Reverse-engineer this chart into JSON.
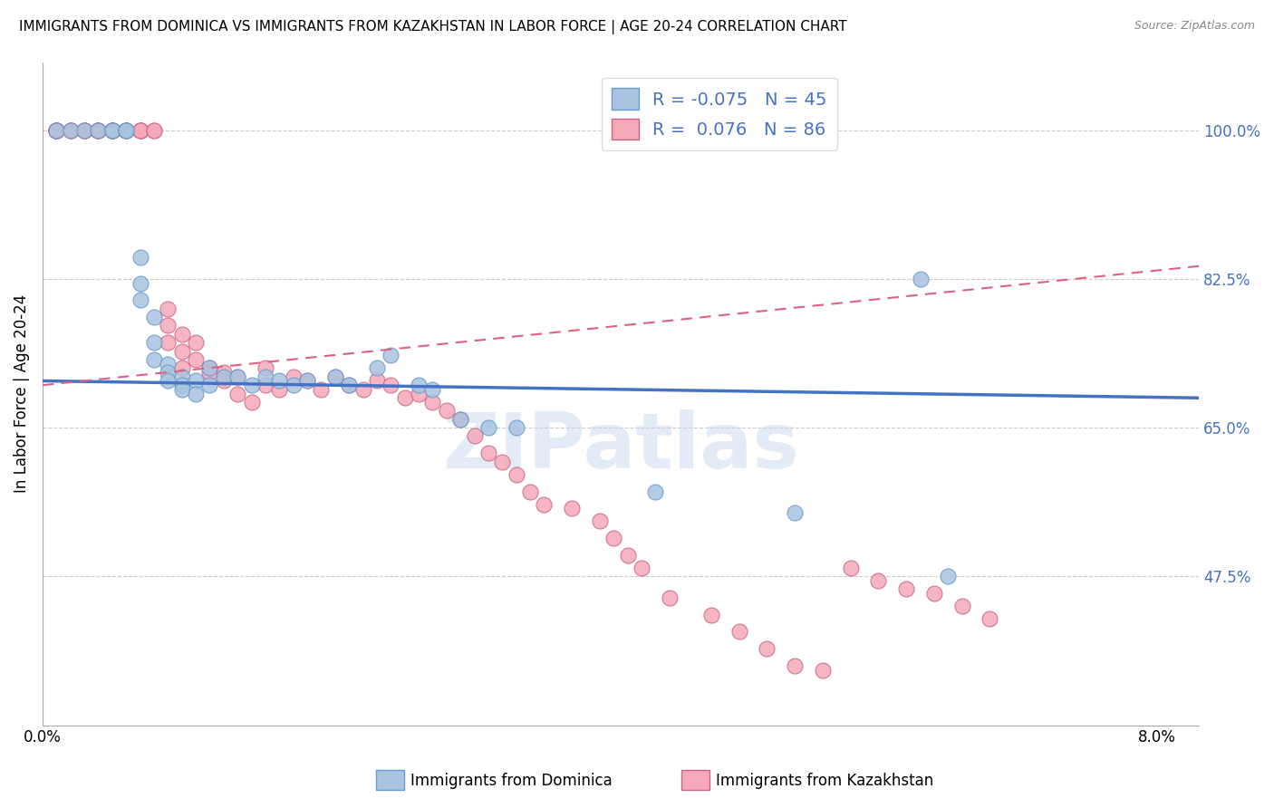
{
  "title": "IMMIGRANTS FROM DOMINICA VS IMMIGRANTS FROM KAZAKHSTAN IN LABOR FORCE | AGE 20-24 CORRELATION CHART",
  "source": "Source: ZipAtlas.com",
  "ylabel": "In Labor Force | Age 20-24",
  "y_ticks": [
    47.5,
    65.0,
    82.5,
    100.0
  ],
  "y_tick_labels": [
    "47.5%",
    "65.0%",
    "82.5%",
    "100.0%"
  ],
  "xlim": [
    0.0,
    0.083
  ],
  "ylim": [
    30.0,
    108.0
  ],
  "dominica_R": "-0.075",
  "dominica_N": "45",
  "kazakhstan_R": "0.076",
  "kazakhstan_N": "86",
  "dominica_color": "#a8c4e0",
  "kazakhstan_color": "#f4a8b8",
  "dominica_edge": "#6699cc",
  "kazakhstan_edge": "#cc6688",
  "trend_dominica_color": "#4472c4",
  "trend_kazakhstan_color": "#e06080",
  "watermark_color": "#c8d8f0",
  "trend_dom_x0": 0.0,
  "trend_dom_y0": 70.5,
  "trend_dom_x1": 0.083,
  "trend_dom_y1": 68.5,
  "trend_kaz_x0": 0.0,
  "trend_kaz_y0": 70.0,
  "trend_kaz_x1": 0.083,
  "trend_kaz_y1": 84.0,
  "dominica_x": [
    0.001,
    0.002,
    0.003,
    0.004,
    0.005,
    0.005,
    0.006,
    0.006,
    0.006,
    0.007,
    0.007,
    0.007,
    0.008,
    0.008,
    0.008,
    0.009,
    0.009,
    0.009,
    0.01,
    0.01,
    0.01,
    0.011,
    0.011,
    0.012,
    0.012,
    0.013,
    0.014,
    0.015,
    0.016,
    0.017,
    0.018,
    0.019,
    0.021,
    0.022,
    0.024,
    0.025,
    0.027,
    0.028,
    0.03,
    0.032,
    0.034,
    0.044,
    0.054,
    0.063,
    0.065
  ],
  "dominica_y": [
    100.0,
    100.0,
    100.0,
    100.0,
    100.0,
    100.0,
    100.0,
    100.0,
    100.0,
    85.0,
    82.0,
    80.0,
    78.0,
    75.0,
    73.0,
    72.5,
    71.5,
    70.5,
    71.0,
    70.0,
    69.5,
    70.5,
    69.0,
    72.0,
    70.0,
    71.0,
    71.0,
    70.0,
    71.0,
    70.5,
    70.0,
    70.5,
    71.0,
    70.0,
    72.0,
    73.5,
    70.0,
    69.5,
    66.0,
    65.0,
    65.0,
    57.5,
    55.0,
    82.5,
    47.5
  ],
  "kazakhstan_x": [
    0.001,
    0.001,
    0.001,
    0.001,
    0.001,
    0.001,
    0.001,
    0.002,
    0.002,
    0.002,
    0.003,
    0.003,
    0.003,
    0.003,
    0.004,
    0.004,
    0.004,
    0.004,
    0.005,
    0.005,
    0.005,
    0.005,
    0.005,
    0.006,
    0.006,
    0.006,
    0.007,
    0.007,
    0.007,
    0.007,
    0.008,
    0.008,
    0.009,
    0.009,
    0.009,
    0.01,
    0.01,
    0.01,
    0.011,
    0.011,
    0.012,
    0.012,
    0.013,
    0.013,
    0.014,
    0.014,
    0.015,
    0.016,
    0.016,
    0.017,
    0.018,
    0.019,
    0.02,
    0.021,
    0.022,
    0.023,
    0.024,
    0.025,
    0.026,
    0.027,
    0.028,
    0.029,
    0.03,
    0.031,
    0.032,
    0.033,
    0.034,
    0.035,
    0.036,
    0.038,
    0.04,
    0.041,
    0.042,
    0.043,
    0.045,
    0.048,
    0.05,
    0.052,
    0.054,
    0.056,
    0.058,
    0.06,
    0.062,
    0.064,
    0.066,
    0.068
  ],
  "kazakhstan_y": [
    100.0,
    100.0,
    100.0,
    100.0,
    100.0,
    100.0,
    100.0,
    100.0,
    100.0,
    100.0,
    100.0,
    100.0,
    100.0,
    100.0,
    100.0,
    100.0,
    100.0,
    100.0,
    100.0,
    100.0,
    100.0,
    100.0,
    100.0,
    100.0,
    100.0,
    100.0,
    100.0,
    100.0,
    100.0,
    100.0,
    100.0,
    100.0,
    79.0,
    77.0,
    75.0,
    76.0,
    74.0,
    72.0,
    75.0,
    73.0,
    72.0,
    71.5,
    71.5,
    70.5,
    71.0,
    69.0,
    68.0,
    72.0,
    70.0,
    69.5,
    71.0,
    70.5,
    69.5,
    71.0,
    70.0,
    69.5,
    70.5,
    70.0,
    68.5,
    69.0,
    68.0,
    67.0,
    66.0,
    64.0,
    62.0,
    61.0,
    59.5,
    57.5,
    56.0,
    55.5,
    54.0,
    52.0,
    50.0,
    48.5,
    45.0,
    43.0,
    41.0,
    39.0,
    37.0,
    36.5,
    48.5,
    47.0,
    46.0,
    45.5,
    44.0,
    42.5
  ]
}
